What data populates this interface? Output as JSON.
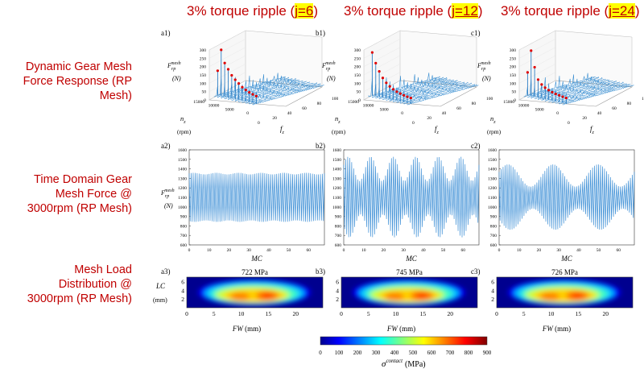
{
  "column_titles": [
    {
      "prefix": "3% torque ripple (",
      "j": "j=6",
      "suffix": ")"
    },
    {
      "prefix": "3% torque ripple (",
      "j": "j=12",
      "suffix": ")"
    },
    {
      "prefix": "3% torque ripple (",
      "j": "j=24",
      "suffix": ")"
    }
  ],
  "row_labels": [
    [
      "Dynamic Gear Mesh",
      "Force Response (RP",
      "Mesh)"
    ],
    [
      "Time Domain Gear",
      "Mesh Force @",
      "3000rpm (RP Mesh)"
    ],
    [
      "Mesh Load",
      "Distribution @",
      "3000rpm (RP Mesh)"
    ]
  ],
  "panel_tags": {
    "row1": [
      "a1)",
      "b1)",
      "c1)"
    ],
    "row2": [
      "a2)",
      "b2)",
      "c2)"
    ],
    "row3": [
      "a3)",
      "b3)",
      "c3)"
    ]
  },
  "axes": {
    "force_symbol": "F",
    "force_sub": "rp",
    "force_sup": "mesh",
    "force_unit": "(N)",
    "speed_symbol": "n",
    "speed_sub": "z",
    "speed_unit": "(rpm)",
    "freq_symbol": "f",
    "freq_sub": "z",
    "mc_label": "MC",
    "lc_label": "LC",
    "lc_unit": "(mm)",
    "fw_label": "FW",
    "fw_unit": "(mm)"
  },
  "colorbar": {
    "ticks": [
      "0",
      "100",
      "200",
      "300",
      "400",
      "500",
      "600",
      "700",
      "800",
      "900"
    ],
    "label": "σ",
    "label_sup": "contact",
    "unit": "(MPa)"
  },
  "chart_data": [
    {
      "panel": "a1)",
      "type": "3d-waterfall",
      "z_ticks": [
        "0",
        "50",
        "100",
        "150",
        "200",
        "250",
        "300"
      ],
      "speed_ticks": [
        "15000",
        "10000",
        "5000",
        "0"
      ],
      "freq_ticks": [
        "0",
        "20",
        "40",
        "60",
        "80",
        "100"
      ],
      "peak_values": [
        150,
        280,
        205,
        172,
        140,
        118,
        100,
        82,
        70,
        60,
        52,
        46
      ]
    },
    {
      "panel": "b1)",
      "type": "3d-waterfall",
      "z_ticks": [
        "0",
        "50",
        "100",
        "150",
        "200",
        "250",
        "300"
      ],
      "speed_ticks": [
        "15000",
        "10000",
        "5000",
        "0"
      ],
      "freq_ticks": [
        "0",
        "20",
        "40",
        "60",
        "80",
        "100"
      ],
      "peak_values": [
        260,
        200,
        155,
        120,
        95,
        78,
        65,
        55,
        48,
        42,
        38,
        35
      ]
    },
    {
      "panel": "c1)",
      "type": "3d-waterfall",
      "z_ticks": [
        "0",
        "50",
        "100",
        "150",
        "200",
        "250",
        "300"
      ],
      "speed_ticks": [
        "15000",
        "10000",
        "5000",
        "0"
      ],
      "freq_ticks": [
        "0",
        "20",
        "40",
        "60",
        "80",
        "100"
      ],
      "peak_values": [
        140,
        275,
        180,
        110,
        85,
        70,
        60,
        52,
        46,
        42,
        38,
        35
      ]
    },
    {
      "panel": "a2)",
      "type": "line",
      "ylim": [
        600,
        1600
      ],
      "xlim": [
        0,
        68
      ],
      "y_ticks": [
        "600",
        "700",
        "800",
        "900",
        "1000",
        "1100",
        "1200",
        "1300",
        "1400",
        "1500",
        "1600"
      ],
      "x_ticks": [
        "0",
        "10",
        "20",
        "30",
        "40",
        "50",
        "60"
      ],
      "mean": 1100,
      "amplitude": 250,
      "modulation": 8,
      "modulation_cycles": 6,
      "mesh_cycles": 68
    },
    {
      "panel": "b2)",
      "type": "line",
      "ylim": [
        600,
        1600
      ],
      "xlim": [
        0,
        68
      ],
      "y_ticks": [
        "600",
        "700",
        "800",
        "900",
        "1000",
        "1100",
        "1200",
        "1300",
        "1400",
        "1500",
        "1600"
      ],
      "x_ticks": [
        "0",
        "10",
        "20",
        "30",
        "40",
        "50",
        "60"
      ],
      "mean": 1100,
      "amplitude": 300,
      "modulation": 120,
      "modulation_cycles": 6,
      "mesh_cycles": 68
    },
    {
      "panel": "c2)",
      "type": "line",
      "ylim": [
        600,
        1600
      ],
      "xlim": [
        0,
        68
      ],
      "y_ticks": [
        "600",
        "700",
        "800",
        "900",
        "1000",
        "1100",
        "1200",
        "1300",
        "1400",
        "1500",
        "1600"
      ],
      "x_ticks": [
        "0",
        "10",
        "20",
        "30",
        "40",
        "50",
        "60"
      ],
      "mean": 1100,
      "amplitude": 230,
      "modulation": 110,
      "modulation_cycles": 3,
      "mesh_cycles": 68
    },
    {
      "panel": "a3)",
      "type": "heatmap",
      "title": "722 MPa",
      "y_ticks": [
        "2",
        "4",
        "6"
      ],
      "x_ticks": [
        "0",
        "5",
        "10",
        "15",
        "20"
      ],
      "xlim": [
        0,
        25
      ],
      "ylim": [
        0,
        7
      ],
      "max_mpa": 722
    },
    {
      "panel": "b3)",
      "type": "heatmap",
      "title": "745 MPa",
      "y_ticks": [
        "2",
        "4",
        "6"
      ],
      "x_ticks": [
        "0",
        "5",
        "10",
        "15",
        "20"
      ],
      "xlim": [
        0,
        25
      ],
      "ylim": [
        0,
        7
      ],
      "max_mpa": 745
    },
    {
      "panel": "c3)",
      "type": "heatmap",
      "title": "726 MPa",
      "y_ticks": [
        "2",
        "4",
        "6"
      ],
      "x_ticks": [
        "0",
        "5",
        "10",
        "15",
        "20"
      ],
      "xlim": [
        0,
        25
      ],
      "ylim": [
        0,
        7
      ],
      "max_mpa": 726
    }
  ]
}
